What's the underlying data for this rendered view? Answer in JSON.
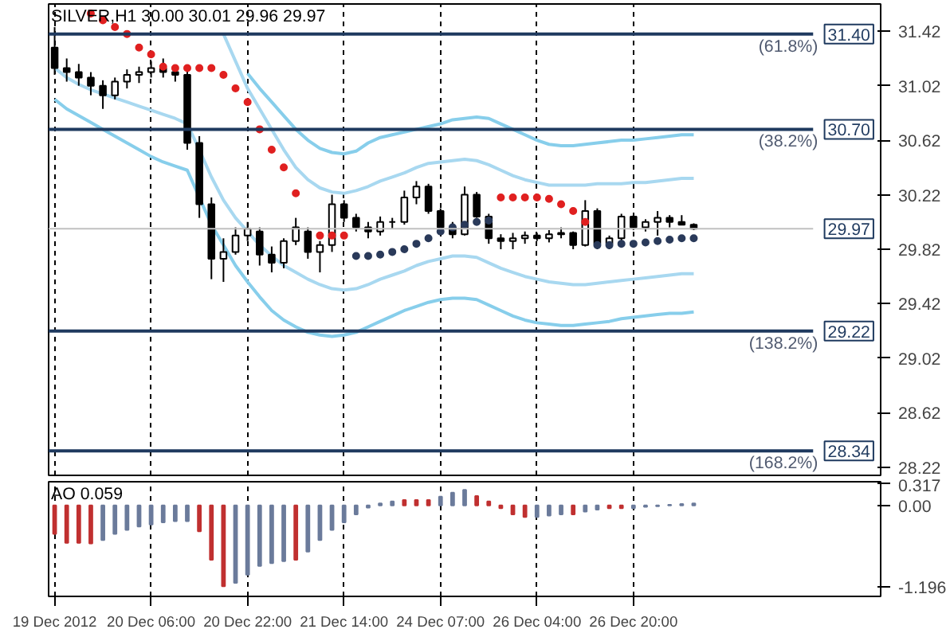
{
  "chart_data": [
    {
      "type": "candlestick",
      "title": "SILVER,H1 30.00 30.01 29.96 29.97",
      "categories": [
        null,
        null,
        null,
        null,
        null,
        null,
        null,
        null,
        null,
        null,
        null,
        null,
        null,
        null,
        null,
        null,
        null,
        null,
        null,
        null,
        null,
        null,
        null,
        null,
        null,
        null,
        null,
        null,
        null,
        null,
        null,
        null,
        null,
        null,
        null,
        null,
        null,
        null,
        null,
        null,
        null,
        null,
        null,
        null,
        null,
        null,
        null,
        null,
        null,
        null,
        null,
        null,
        null,
        null,
        null,
        null,
        null,
        null,
        null,
        null,
        null,
        null,
        null,
        null,
        null,
        null,
        null,
        null,
        null
      ],
      "ohlc": [
        [
          31.3,
          31.45,
          31.1,
          31.15
        ],
        [
          31.15,
          31.22,
          31.05,
          31.12
        ],
        [
          31.12,
          31.18,
          31.02,
          31.08
        ],
        [
          31.08,
          31.12,
          30.95,
          31.02
        ],
        [
          31.02,
          31.06,
          30.85,
          30.95
        ],
        [
          30.95,
          31.08,
          30.92,
          31.05
        ],
        [
          31.05,
          31.14,
          31.0,
          31.1
        ],
        [
          31.1,
          31.16,
          31.04,
          31.12
        ],
        [
          31.12,
          31.2,
          31.08,
          31.15
        ],
        [
          31.15,
          31.22,
          31.08,
          31.12
        ],
        [
          31.12,
          31.16,
          31.05,
          31.1
        ],
        [
          31.1,
          31.15,
          30.55,
          30.6
        ],
        [
          30.6,
          30.65,
          30.05,
          30.15
        ],
        [
          30.15,
          30.2,
          29.6,
          29.75
        ],
        [
          29.75,
          29.9,
          29.58,
          29.8
        ],
        [
          29.8,
          29.98,
          29.78,
          29.92
        ],
        [
          29.92,
          30.02,
          29.88,
          29.97
        ],
        [
          29.95,
          29.98,
          29.7,
          29.78
        ],
        [
          29.78,
          29.84,
          29.65,
          29.72
        ],
        [
          29.72,
          29.9,
          29.68,
          29.88
        ],
        [
          29.88,
          30.05,
          29.85,
          29.98
        ],
        [
          29.95,
          29.98,
          29.75,
          29.8
        ],
        [
          29.8,
          29.88,
          29.65,
          29.85
        ],
        [
          29.85,
          30.22,
          29.8,
          30.15
        ],
        [
          30.15,
          30.18,
          30.02,
          30.05
        ],
        [
          30.05,
          30.08,
          29.95,
          29.98
        ],
        [
          29.98,
          30.02,
          29.9,
          29.95
        ],
        [
          29.95,
          30.06,
          29.92,
          30.02
        ],
        [
          30.02,
          30.05,
          29.97,
          30.02
        ],
        [
          30.02,
          30.25,
          30.0,
          30.2
        ],
        [
          30.2,
          30.32,
          30.15,
          30.28
        ],
        [
          30.28,
          30.3,
          30.08,
          30.1
        ],
        [
          30.1,
          30.12,
          29.95,
          29.98
        ],
        [
          29.98,
          30.02,
          29.9,
          29.93
        ],
        [
          29.93,
          30.28,
          29.92,
          30.22
        ],
        [
          30.22,
          30.24,
          30.05,
          30.06
        ],
        [
          30.06,
          30.08,
          29.86,
          29.9
        ],
        [
          29.9,
          29.93,
          29.82,
          29.88
        ],
        [
          29.88,
          29.94,
          29.82,
          29.9
        ],
        [
          29.9,
          29.95,
          29.86,
          29.92
        ],
        [
          29.92,
          29.94,
          29.88,
          29.9
        ],
        [
          29.9,
          29.96,
          29.87,
          29.93
        ],
        [
          29.93,
          29.98,
          29.9,
          29.94
        ],
        [
          29.94,
          29.95,
          29.82,
          29.85
        ],
        [
          29.85,
          30.18,
          29.84,
          30.1
        ],
        [
          30.1,
          30.12,
          29.82,
          29.86
        ],
        [
          29.86,
          29.92,
          29.82,
          29.9
        ],
        [
          29.9,
          30.08,
          29.88,
          30.06
        ],
        [
          30.06,
          30.07,
          29.96,
          29.98
        ],
        [
          29.98,
          30.04,
          29.95,
          30.02
        ],
        [
          30.02,
          30.1,
          29.92,
          30.05
        ],
        [
          30.05,
          30.07,
          29.98,
          30.02
        ],
        [
          30.02,
          30.07,
          30.0,
          30.0
        ],
        [
          30.0,
          30.01,
          29.96,
          29.97
        ],
        null,
        null,
        null,
        null,
        null,
        null,
        null,
        null,
        null,
        null,
        null,
        null,
        null,
        null,
        null
      ],
      "series": [
        {
          "type": "line",
          "color": "#87ceeb",
          "values": [
            null,
            null,
            null,
            null,
            null,
            null,
            null,
            null,
            null,
            null,
            null,
            null,
            null,
            null,
            null,
            null,
            31.11,
            31.0,
            30.9,
            30.8,
            30.7,
            30.62,
            30.56,
            30.53,
            30.52,
            30.54,
            30.6,
            30.64,
            30.66,
            30.68,
            30.7,
            30.72,
            30.74,
            30.77,
            30.78,
            30.79,
            30.78,
            30.74,
            30.7,
            30.66,
            30.62,
            30.59,
            30.58,
            30.58,
            30.59,
            30.6,
            30.61,
            30.62,
            30.62,
            30.63,
            30.64,
            30.65,
            30.66,
            30.66,
            null,
            null,
            null,
            null,
            null,
            null,
            null,
            null,
            null,
            null,
            null,
            null,
            null,
            null,
            null
          ]
        },
        {
          "type": "line",
          "color": "#a8d8f0",
          "values": [
            null,
            null,
            null,
            null,
            null,
            null,
            null,
            null,
            null,
            null,
            null,
            null,
            null,
            null,
            31.4,
            31.2,
            31.0,
            30.85,
            30.7,
            30.55,
            30.42,
            30.33,
            30.27,
            30.24,
            30.23,
            30.25,
            30.28,
            30.32,
            30.35,
            30.38,
            30.42,
            30.45,
            30.46,
            30.47,
            30.48,
            30.47,
            30.44,
            30.4,
            30.36,
            30.33,
            30.31,
            30.29,
            30.29,
            30.29,
            30.29,
            30.3,
            30.3,
            30.3,
            30.31,
            30.31,
            30.32,
            30.33,
            30.34,
            30.34,
            null,
            null,
            null,
            null,
            null,
            null,
            null,
            null,
            null,
            null,
            null,
            null,
            null,
            null,
            null
          ]
        },
        {
          "type": "line",
          "color": "#a8d8f0",
          "values": [
            31.15,
            31.08,
            31.03,
            30.99,
            30.96,
            30.93,
            30.9,
            30.87,
            30.84,
            30.81,
            30.78,
            30.74,
            30.55,
            30.35,
            30.18,
            30.05,
            29.95,
            29.85,
            29.77,
            29.7,
            29.65,
            29.6,
            29.56,
            29.53,
            29.52,
            29.53,
            29.56,
            29.6,
            29.63,
            29.66,
            29.7,
            29.73,
            29.75,
            29.77,
            29.77,
            29.76,
            29.72,
            29.68,
            29.65,
            29.62,
            29.6,
            29.58,
            29.57,
            29.56,
            29.56,
            29.57,
            29.58,
            29.59,
            29.6,
            29.61,
            29.62,
            29.63,
            29.64,
            29.64,
            null,
            null,
            null,
            null,
            null,
            null,
            null,
            null,
            null,
            null,
            null,
            null,
            null,
            null,
            null
          ]
        },
        {
          "type": "line",
          "color": "#87ceeb",
          "values": [
            30.92,
            30.85,
            30.8,
            30.75,
            30.7,
            30.65,
            30.6,
            30.55,
            30.5,
            30.46,
            30.43,
            30.4,
            30.2,
            30.0,
            29.85,
            29.7,
            29.58,
            29.47,
            29.37,
            29.3,
            29.25,
            29.21,
            29.19,
            29.18,
            29.19,
            29.21,
            29.25,
            29.29,
            29.33,
            29.37,
            29.4,
            29.43,
            29.45,
            29.46,
            29.46,
            29.45,
            29.41,
            29.37,
            29.33,
            29.3,
            29.28,
            29.27,
            29.26,
            29.26,
            29.27,
            29.28,
            29.29,
            29.31,
            29.32,
            29.33,
            29.34,
            29.35,
            29.35,
            29.36,
            null,
            null,
            null,
            null,
            null,
            null,
            null,
            null,
            null,
            null,
            null,
            null,
            null,
            null,
            null
          ]
        },
        {
          "type": "scatter",
          "color": "#e02020",
          "values": [
            null,
            null,
            null,
            31.55,
            31.5,
            31.45,
            31.4,
            31.3,
            31.25,
            31.16,
            31.15,
            31.15,
            31.15,
            31.15,
            31.1,
            31.0,
            30.9,
            30.7,
            30.55,
            30.42,
            30.23,
            null,
            29.92,
            29.92,
            29.92,
            null,
            null,
            null,
            null,
            null,
            null,
            null,
            null,
            null,
            null,
            null,
            null,
            30.2,
            30.2,
            30.2,
            30.2,
            30.19,
            30.15,
            30.1,
            30.02,
            null,
            null,
            null,
            null,
            null,
            null,
            null,
            null,
            null,
            null,
            null,
            null,
            null,
            null,
            null,
            null,
            null,
            null,
            null,
            null,
            null,
            null,
            null,
            null
          ]
        },
        {
          "type": "scatter",
          "color": "#2a3a5a",
          "values": [
            null,
            null,
            null,
            null,
            null,
            null,
            null,
            null,
            null,
            null,
            null,
            null,
            null,
            null,
            null,
            null,
            null,
            null,
            null,
            null,
            null,
            null,
            null,
            null,
            null,
            29.77,
            29.77,
            29.78,
            29.8,
            29.82,
            29.86,
            29.9,
            29.95,
            29.98,
            30.0,
            30.02,
            30.03,
            null,
            null,
            null,
            null,
            null,
            null,
            null,
            null,
            29.85,
            29.85,
            29.86,
            29.86,
            29.87,
            29.88,
            29.89,
            29.9,
            29.9,
            null,
            null,
            null,
            null,
            null,
            null,
            null,
            null,
            null,
            null,
            null,
            null,
            null,
            null,
            null
          ]
        }
      ],
      "ref_lines": [
        {
          "axis": "y",
          "value": 31.4,
          "label": "31.40",
          "color": "#1f3a5f"
        },
        {
          "axis": "y",
          "value": 30.7,
          "label": "30.70",
          "color": "#1f3a5f"
        },
        {
          "axis": "y",
          "value": 29.22,
          "label": "29.22",
          "color": "#1f3a5f"
        },
        {
          "axis": "y",
          "value": 28.34,
          "label": "28.34",
          "color": "#1f3a5f"
        },
        {
          "axis": "y",
          "value": 29.97,
          "label": "29.97",
          "color": "#c0c0c0"
        }
      ],
      "annotations": [
        {
          "text": "(61.8%)",
          "y": 31.4
        },
        {
          "text": "(38.2%)",
          "y": 30.7
        },
        {
          "text": "(138.2%)",
          "y": 29.22
        },
        {
          "text": "(168.2%)",
          "y": 28.34
        }
      ],
      "ylim": [
        28.16,
        31.62
      ],
      "yticks": [
        28.22,
        28.62,
        29.02,
        29.42,
        29.82,
        30.22,
        30.62,
        31.02,
        31.42
      ],
      "grid": "x",
      "tick_labels": "y"
    },
    {
      "type": "bar",
      "title": "AO 0.059",
      "categories": [
        "19 Dec 2012",
        null,
        null,
        null,
        null,
        null,
        null,
        null,
        "20 Dec 06:00",
        null,
        null,
        null,
        null,
        null,
        null,
        null,
        "20 Dec 22:00",
        null,
        null,
        null,
        null,
        null,
        null,
        null,
        "21 Dec 14:00",
        null,
        null,
        null,
        null,
        null,
        null,
        null,
        "24 Dec 07:00",
        null,
        null,
        null,
        null,
        null,
        null,
        null,
        "26 Dec 04:00",
        null,
        null,
        null,
        null,
        null,
        null,
        null,
        "26 Dec 20:00",
        null,
        null,
        null,
        null,
        null,
        null,
        null,
        null,
        null,
        null,
        null,
        null,
        null,
        null,
        null,
        null,
        null,
        null,
        null,
        null
      ],
      "values": [
        -0.42,
        -0.55,
        -0.55,
        -0.56,
        -0.51,
        -0.42,
        -0.36,
        -0.31,
        -0.28,
        -0.25,
        -0.23,
        -0.23,
        -0.38,
        -0.8,
        -1.19,
        -1.14,
        -1.02,
        -0.89,
        -0.85,
        -0.82,
        -0.8,
        -0.68,
        -0.51,
        -0.36,
        -0.25,
        -0.13,
        -0.03,
        0.03,
        0.06,
        0.08,
        0.08,
        0.08,
        0.13,
        0.19,
        0.23,
        0.14,
        0.06,
        -0.04,
        -0.13,
        -0.17,
        -0.17,
        -0.15,
        -0.13,
        -0.13,
        -0.09,
        -0.06,
        -0.04,
        -0.04,
        -0.04,
        -0.02,
        -0.01,
        0.01,
        0.02,
        0.03,
        null,
        null,
        null,
        null,
        null,
        null,
        null,
        null,
        null,
        null,
        null,
        null,
        null,
        null,
        null
      ],
      "colors": [
        "#c03030",
        "#c03030",
        "#c03030",
        "#c03030",
        "#6b7b9b",
        "#6b7b9b",
        "#6b7b9b",
        "#6b7b9b",
        "#6b7b9b",
        "#6b7b9b",
        "#6b7b9b",
        "#6b7b9b",
        "#c03030",
        "#c03030",
        "#c03030",
        "#6b7b9b",
        "#6b7b9b",
        "#6b7b9b",
        "#6b7b9b",
        "#6b7b9b",
        "#c03030",
        "#6b7b9b",
        "#6b7b9b",
        "#6b7b9b",
        "#6b7b9b",
        "#6b7b9b",
        "#6b7b9b",
        "#6b7b9b",
        "#6b7b9b",
        "#c03030",
        "#c03030",
        "#c03030",
        "#6b7b9b",
        "#6b7b9b",
        "#6b7b9b",
        "#c03030",
        "#c03030",
        "#c03030",
        "#c03030",
        "#c03030",
        "#6b7b9b",
        "#6b7b9b",
        "#6b7b9b",
        "#c03030",
        "#6b7b9b",
        "#6b7b9b",
        "#c03030",
        "#c03030",
        "#6b7b9b",
        "#6b7b9b",
        "#6b7b9b",
        "#6b7b9b",
        "#6b7b9b",
        "#6b7b9b",
        null,
        null,
        null,
        null,
        null,
        null,
        null,
        null,
        null,
        null,
        null,
        null,
        null,
        null,
        null
      ],
      "ylim": [
        -1.34,
        0.35
      ],
      "yticks": [
        -1.196,
        {
          "value": 0,
          "label": "0.00"
        },
        0.317
      ],
      "grid": "x"
    }
  ]
}
